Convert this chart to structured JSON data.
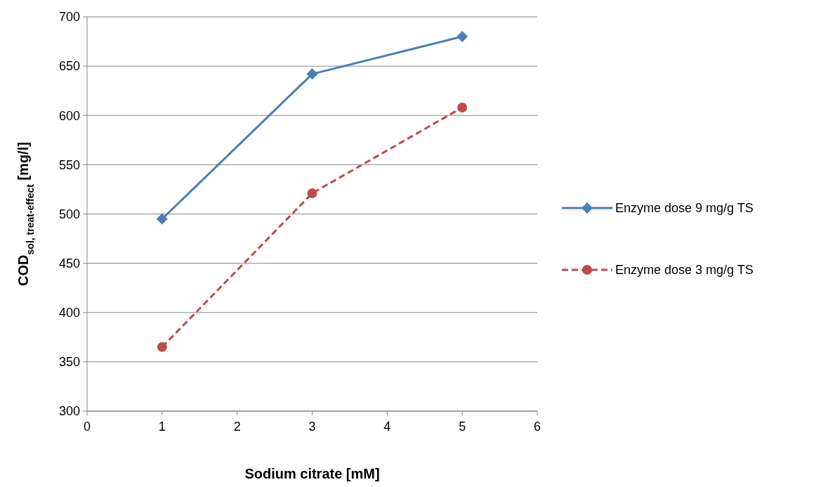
{
  "chart_data": {
    "type": "line",
    "xlabel": "Sodium citrate [mM]",
    "ylabel": "COD$_{sol, treat-effect}$ [mg/l]",
    "series": [
      {
        "name": "Enzyme dose 9 mg/g TS",
        "color": "#4a7ebb",
        "x": [
          1,
          3,
          5
        ],
        "values": [
          495,
          642,
          680
        ],
        "marker": "diamond",
        "line_style": "solid"
      },
      {
        "name": "Enzyme dose 3 mg/g TS",
        "color": "#be4b48",
        "x": [
          1,
          3,
          5
        ],
        "values": [
          365,
          521,
          608
        ],
        "marker": "circle",
        "line_style": "dashed"
      }
    ],
    "xlim": [
      0,
      6
    ],
    "xticks": [
      0,
      1,
      2,
      3,
      4,
      5,
      6
    ],
    "ylim": [
      300,
      700
    ],
    "yticks": [
      300,
      350,
      400,
      450,
      500,
      550,
      600,
      650,
      700
    ],
    "grid": "y",
    "legend": "right"
  }
}
